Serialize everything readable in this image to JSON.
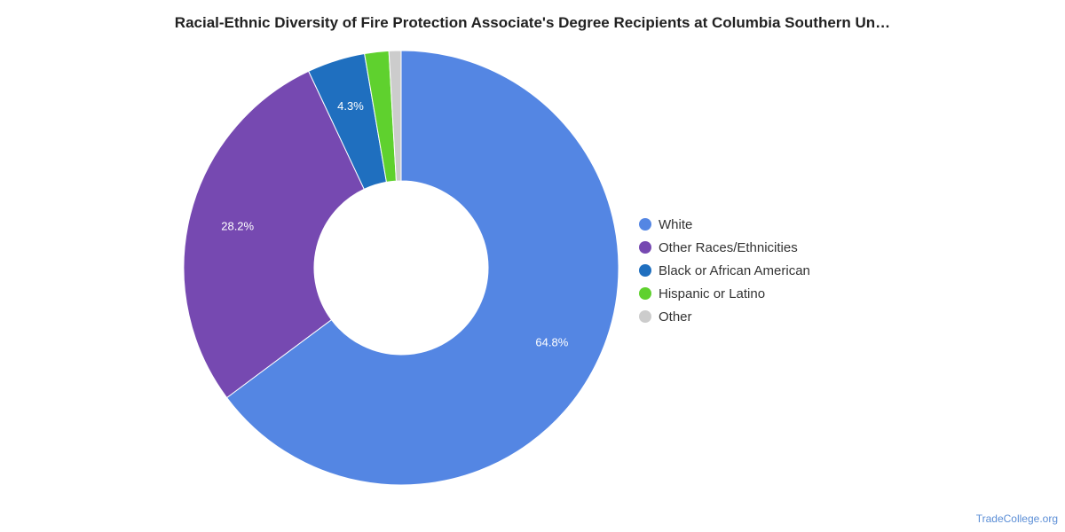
{
  "chart_data": {
    "type": "pie",
    "title": "Racial-Ethnic Diversity of Fire Protection Associate's Degree Recipients at Columbia Southern Un…",
    "donut": true,
    "legend_position": "right",
    "series": [
      {
        "name": "White",
        "value": 64.8,
        "label": "64.8%",
        "color": "#5486e3"
      },
      {
        "name": "Other Races/Ethnicities",
        "value": 28.2,
        "label": "28.2%",
        "color": "#7649b1"
      },
      {
        "name": "Black or African American",
        "value": 4.3,
        "label": "4.3%",
        "color": "#1f6fbf"
      },
      {
        "name": "Hispanic or Latino",
        "value": 1.8,
        "label": "",
        "color": "#5fd12e"
      },
      {
        "name": "Other",
        "value": 0.9,
        "label": "",
        "color": "#cccccc"
      }
    ]
  },
  "watermark": "TradeCollege.org"
}
